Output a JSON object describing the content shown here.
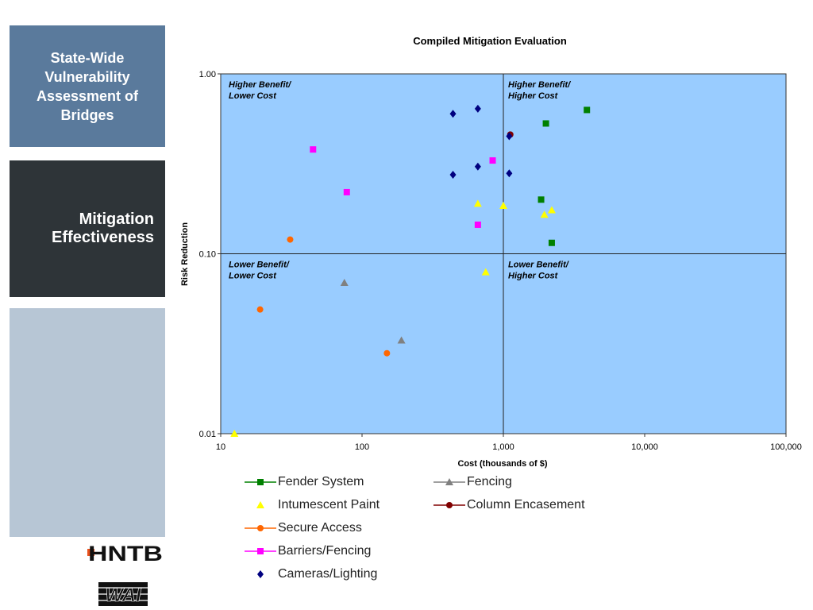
{
  "sidebar": {
    "title": "State-Wide\nVulnerability\nAssessment of\nBridges",
    "active": "Mitigation\nEffectiveness",
    "logo_hntb": "HNTB",
    "logo_wai": "WAI"
  },
  "chart_data": {
    "type": "scatter",
    "title": "Compiled Mitigation Evaluation",
    "xlabel": "Cost (thousands of $)",
    "ylabel": "Risk Reduction",
    "xscale": "log",
    "yscale": "log",
    "xlim": [
      10,
      100000
    ],
    "ylim": [
      0.01,
      1.0
    ],
    "xticks": [
      10,
      100,
      1000,
      10000,
      100000
    ],
    "xtick_labels": [
      "10",
      "100",
      "1,000",
      "10,000",
      "100,000"
    ],
    "yticks": [
      0.01,
      0.1,
      1.0
    ],
    "ytick_labels": [
      "0.01",
      "0.10",
      "1.00"
    ],
    "plot_background": "#99ccff",
    "divider_x": 1000,
    "divider_y": 0.1,
    "quadrant_labels": [
      {
        "text": "Higher Benefit/\nLower Cost",
        "quadrant": "top-left"
      },
      {
        "text": "Higher Benefit/\nHigher Cost",
        "quadrant": "top-right"
      },
      {
        "text": "Lower Benefit/\nLower Cost",
        "quadrant": "bottom-left"
      },
      {
        "text": "Lower Benefit/\nHigher Cost",
        "quadrant": "bottom-right"
      }
    ],
    "legend_position": "below",
    "series": [
      {
        "name": "Fender System",
        "marker": "square",
        "color": "#008000",
        "legend_line": true,
        "points": [
          [
            3900,
            0.63
          ],
          [
            2000,
            0.53
          ],
          [
            1850,
            0.2
          ],
          [
            2200,
            0.115
          ]
        ]
      },
      {
        "name": "Fencing",
        "marker": "triangle",
        "color": "#808080",
        "legend_line": true,
        "points": [
          [
            75,
            0.069
          ],
          [
            190,
            0.033
          ]
        ]
      },
      {
        "name": "Intumescent Paint",
        "marker": "triangle",
        "color": "#ffff00",
        "legend_line": false,
        "points": [
          [
            660,
            0.19
          ],
          [
            1000,
            0.185
          ],
          [
            1950,
            0.165
          ],
          [
            2200,
            0.175
          ],
          [
            750,
            0.079
          ],
          [
            12.5,
            0.01
          ]
        ]
      },
      {
        "name": "Column Encasement",
        "marker": "circle",
        "color": "#800000",
        "legend_line": true,
        "points": [
          [
            1120,
            0.46
          ]
        ]
      },
      {
        "name": "Secure Access",
        "marker": "circle",
        "color": "#ff6600",
        "legend_line": true,
        "points": [
          [
            31,
            0.12
          ],
          [
            19,
            0.049
          ],
          [
            150,
            0.028
          ]
        ]
      },
      {
        "name": "Barriers/Fencing",
        "marker": "square",
        "color": "#ff00ff",
        "legend_line": true,
        "points": [
          [
            45,
            0.38
          ],
          [
            840,
            0.33
          ],
          [
            78,
            0.22
          ],
          [
            660,
            0.145
          ]
        ]
      },
      {
        "name": "Cameras/Lighting",
        "marker": "diamond",
        "color": "#000080",
        "legend_line": false,
        "points": [
          [
            440,
            0.6
          ],
          [
            660,
            0.64
          ],
          [
            1100,
            0.45
          ],
          [
            440,
            0.275
          ],
          [
            660,
            0.305
          ],
          [
            1100,
            0.28
          ]
        ]
      }
    ]
  },
  "legend": {
    "items": [
      {
        "label": "Fender System",
        "series": 0
      },
      {
        "label": "Fencing",
        "series": 1
      },
      {
        "label": "Intumescent Paint",
        "series": 2
      },
      {
        "label": "Column Encasement",
        "series": 3
      },
      {
        "label": "Secure Access",
        "series": 4
      },
      {
        "label": "Barriers/Fencing",
        "series": 5
      },
      {
        "label": "Cameras/Lighting",
        "series": 6
      }
    ]
  }
}
